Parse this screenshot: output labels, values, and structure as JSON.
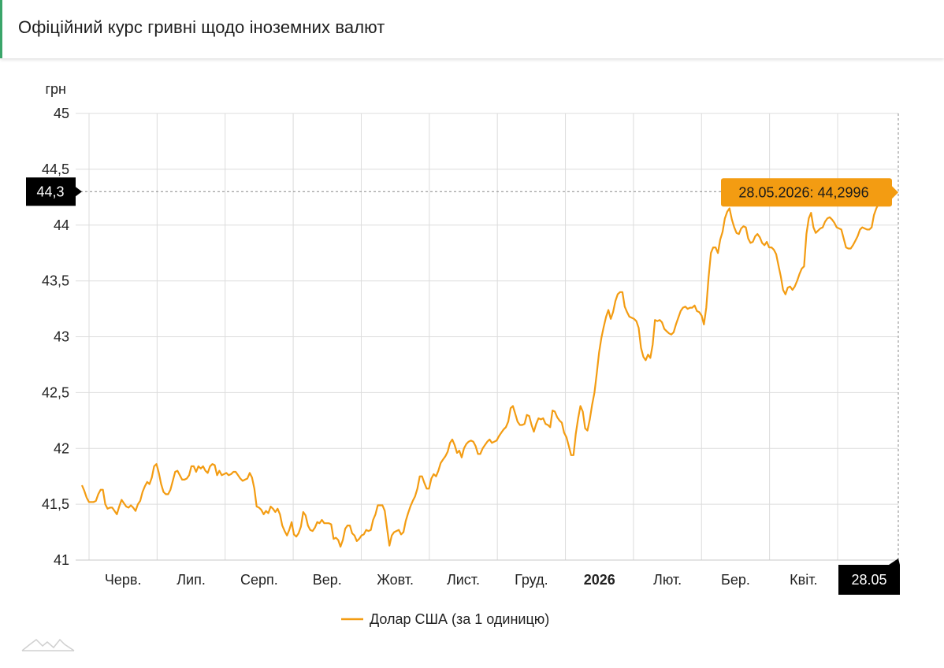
{
  "header": {
    "title": "Офіційний курс гривні щодо іноземних валют"
  },
  "colors": {
    "series": "#f39c12",
    "tooltip_bg": "#f39c12",
    "marker_bg": "#000000",
    "grid": "#dcdcdc"
  },
  "chart_data": {
    "type": "line",
    "title": "Офіційний курс гривні щодо іноземних валют",
    "ylabel": "грн",
    "ylim": [
      41,
      45
    ],
    "y_ticks": [
      "41",
      "41,5",
      "42",
      "42,5",
      "43",
      "43,5",
      "44",
      "44,5",
      "45"
    ],
    "x_ticks": [
      {
        "label": "Черв.",
        "bold": false
      },
      {
        "label": "Лип.",
        "bold": false
      },
      {
        "label": "Серп.",
        "bold": false
      },
      {
        "label": "Вер.",
        "bold": false
      },
      {
        "label": "Жовт.",
        "bold": false
      },
      {
        "label": "Лист.",
        "bold": false
      },
      {
        "label": "Груд.",
        "bold": false
      },
      {
        "label": "2026",
        "bold": true
      },
      {
        "label": "Лют.",
        "bold": false
      },
      {
        "label": "Бер.",
        "bold": false
      },
      {
        "label": "Квіт.",
        "bold": false
      }
    ],
    "grid": true,
    "legend": "bottom-center",
    "crosshair": {
      "y_label": "44,3",
      "x_label": "28.05",
      "tooltip": "28.05.2026: 44,2996",
      "value": 44.2996
    },
    "series": [
      {
        "name": "Долар США (за 1 одиницю)",
        "values": [
          41.67,
          41.62,
          41.56,
          41.52,
          41.52,
          41.52,
          41.53,
          41.59,
          41.63,
          41.63,
          41.5,
          41.46,
          41.47,
          41.47,
          41.44,
          41.41,
          41.48,
          41.54,
          41.51,
          41.48,
          41.47,
          41.49,
          41.47,
          41.44,
          41.5,
          41.53,
          41.61,
          41.66,
          41.7,
          41.68,
          41.74,
          41.84,
          41.86,
          41.78,
          41.68,
          41.61,
          41.59,
          41.59,
          41.63,
          41.71,
          41.79,
          41.8,
          41.76,
          41.72,
          41.72,
          41.73,
          41.76,
          41.84,
          41.84,
          41.79,
          41.84,
          41.82,
          41.84,
          41.8,
          41.78,
          41.84,
          41.86,
          41.85,
          41.76,
          41.8,
          41.76,
          41.77,
          41.78,
          41.76,
          41.77,
          41.79,
          41.79,
          41.76,
          41.73,
          41.71,
          41.72,
          41.73,
          41.78,
          41.74,
          41.64,
          41.48,
          41.47,
          41.45,
          41.41,
          41.44,
          41.42,
          41.48,
          41.46,
          41.43,
          41.46,
          41.41,
          41.31,
          41.26,
          41.22,
          41.27,
          41.34,
          41.23,
          41.21,
          41.24,
          41.3,
          41.43,
          41.4,
          41.31,
          41.27,
          41.26,
          41.29,
          41.34,
          41.33,
          41.36,
          41.33,
          41.33,
          41.33,
          41.32,
          41.19,
          41.2,
          41.18,
          41.12,
          41.18,
          41.28,
          41.31,
          41.31,
          41.24,
          41.22,
          41.17,
          41.19,
          41.22,
          41.23,
          41.27,
          41.26,
          41.27,
          41.36,
          41.41,
          41.49,
          41.49,
          41.49,
          41.44,
          41.28,
          41.13,
          41.22,
          41.25,
          41.26,
          41.27,
          41.23,
          41.25,
          41.35,
          41.42,
          41.48,
          41.53,
          41.57,
          41.64,
          41.75,
          41.75,
          41.69,
          41.64,
          41.64,
          41.73,
          41.77,
          41.75,
          41.8,
          41.87,
          41.9,
          41.93,
          41.97,
          42.05,
          42.08,
          42.03,
          41.96,
          41.98,
          41.92,
          42.0,
          42.04,
          42.06,
          42.07,
          42.06,
          42.02,
          41.95,
          41.95,
          42.0,
          42.03,
          42.06,
          42.08,
          42.05,
          42.06,
          42.07,
          42.11,
          42.14,
          42.17,
          42.19,
          42.24,
          42.36,
          42.38,
          42.31,
          42.24,
          42.21,
          42.21,
          42.22,
          42.3,
          42.29,
          42.21,
          42.15,
          42.22,
          42.27,
          42.26,
          42.27,
          42.22,
          42.21,
          42.19,
          42.34,
          42.33,
          42.28,
          42.25,
          42.23,
          42.14,
          42.1,
          42.02,
          41.94,
          41.94,
          42.13,
          42.27,
          42.38,
          42.33,
          42.18,
          42.16,
          42.26,
          42.39,
          42.5,
          42.67,
          42.86,
          42.99,
          43.09,
          43.18,
          43.24,
          43.16,
          43.22,
          43.32,
          43.38,
          43.4,
          43.4,
          43.27,
          43.22,
          43.18,
          43.17,
          43.16,
          43.14,
          43.08,
          42.9,
          42.82,
          42.79,
          42.84,
          42.81,
          42.93,
          43.15,
          43.14,
          43.15,
          43.13,
          43.07,
          43.05,
          43.03,
          43.02,
          43.04,
          43.11,
          43.17,
          43.23,
          43.26,
          43.27,
          43.25,
          43.26,
          43.26,
          43.28,
          43.23,
          43.22,
          43.19,
          43.11,
          43.26,
          43.53,
          43.75,
          43.8,
          43.8,
          43.75,
          43.87,
          43.94,
          44.06,
          44.12,
          44.15,
          44.05,
          43.98,
          43.93,
          43.92,
          43.97,
          43.99,
          43.98,
          43.88,
          43.84,
          43.85,
          43.9,
          43.92,
          43.89,
          43.84,
          43.82,
          43.85,
          43.8,
          43.8,
          43.78,
          43.74,
          43.64,
          43.54,
          43.42,
          43.38,
          43.44,
          43.45,
          43.42,
          43.45,
          43.5,
          43.56,
          43.61,
          43.63,
          43.92,
          44.06,
          44.11,
          43.98,
          43.93,
          43.95,
          43.97,
          43.98,
          44.03,
          44.06,
          44.07,
          44.05,
          44.02,
          43.98,
          43.97,
          43.96,
          43.88,
          43.8,
          43.79,
          43.79,
          43.82,
          43.86,
          43.9,
          43.96,
          43.98,
          43.97,
          43.96,
          43.96,
          43.98,
          44.09,
          44.15,
          44.19,
          44.2996
        ]
      }
    ]
  }
}
